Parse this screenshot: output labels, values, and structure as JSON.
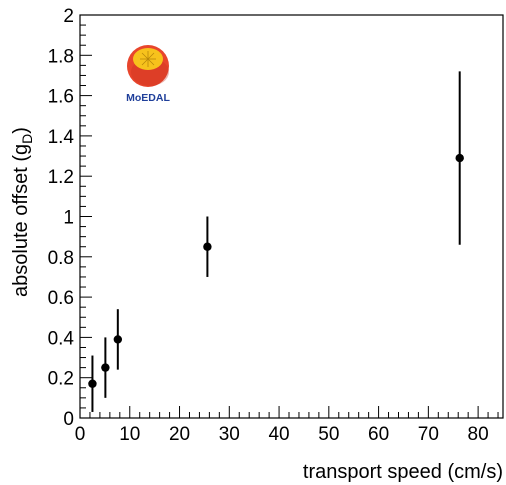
{
  "chart_data": {
    "type": "scatter",
    "title": "",
    "xlabel": "transport speed (cm/s)",
    "ylabel_main": "absolute offset (g",
    "ylabel_sub": "D",
    "ylabel_close": ")",
    "xlim": [
      0,
      85
    ],
    "ylim": [
      0,
      2
    ],
    "x_major_ticks": [
      0,
      10,
      20,
      30,
      40,
      50,
      60,
      70,
      80
    ],
    "x_tick_labels": [
      "0",
      "10",
      "20",
      "30",
      "40",
      "50",
      "60",
      "70",
      "80"
    ],
    "y_major_ticks": [
      0,
      0.2,
      0.4,
      0.6,
      0.8,
      1,
      1.2,
      1.4,
      1.6,
      1.8,
      2
    ],
    "y_tick_labels": [
      "0",
      "0.2",
      "0.4",
      "0.6",
      "0.8",
      "1",
      "1.2",
      "1.4",
      "1.6",
      "1.8",
      "2"
    ],
    "grid": false,
    "points": [
      {
        "x": 2.5,
        "y": 0.17,
        "err": 0.14
      },
      {
        "x": 5.1,
        "y": 0.25,
        "err": 0.15
      },
      {
        "x": 7.6,
        "y": 0.39,
        "err": 0.15
      },
      {
        "x": 25.6,
        "y": 0.85,
        "err": 0.15
      },
      {
        "x": 76.3,
        "y": 1.29,
        "err": 0.43
      }
    ],
    "marker_color": "#000000"
  },
  "logo": {
    "text": "MoEDAL",
    "colors": {
      "outer": "#e8452c",
      "inner": "#f7c21c",
      "text": "#1f3f9a"
    }
  }
}
